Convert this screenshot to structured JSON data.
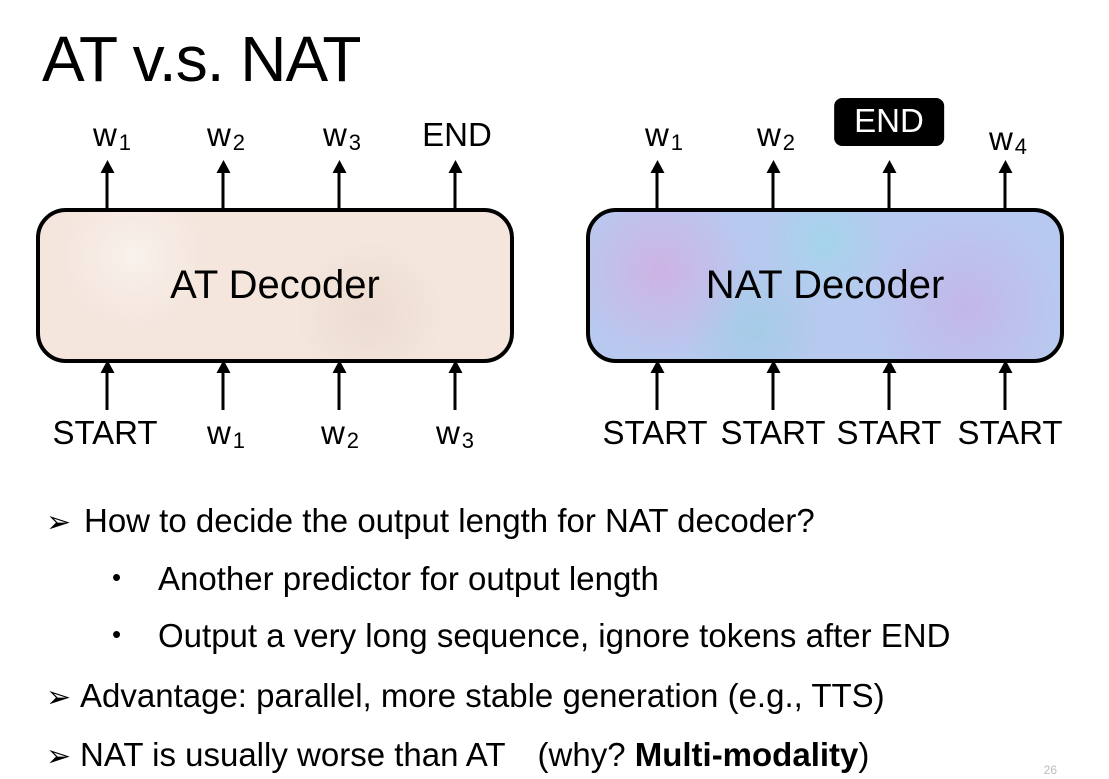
{
  "title": "AT v.s. NAT",
  "at": {
    "label": "AT Decoder",
    "outputs": [
      {
        "base": "w",
        "sub": "1"
      },
      {
        "base": "w",
        "sub": "2"
      },
      {
        "base": "w",
        "sub": "3"
      },
      {
        "base": "END",
        "sub": ""
      }
    ],
    "inputs": [
      {
        "base": "START",
        "sub": ""
      },
      {
        "base": "w",
        "sub": "1"
      },
      {
        "base": "w",
        "sub": "2"
      },
      {
        "base": "w",
        "sub": "3"
      }
    ]
  },
  "nat": {
    "label": "NAT Decoder",
    "outputs": [
      {
        "base": "w",
        "sub": "1"
      },
      {
        "base": "w",
        "sub": "2"
      },
      {
        "base": "END",
        "sub": "",
        "highlight": true
      },
      {
        "base": "w",
        "sub": "4"
      }
    ],
    "inputs": [
      {
        "base": "START",
        "sub": ""
      },
      {
        "base": "START",
        "sub": ""
      },
      {
        "base": "START",
        "sub": ""
      },
      {
        "base": "START",
        "sub": ""
      }
    ]
  },
  "bullets": {
    "mark": "➢",
    "dot": "•",
    "q": "How to decide the output length for NAT decoder?",
    "sub1": "Another predictor for output length",
    "sub2": "Output a very long sequence, ignore tokens after END",
    "adv": "Advantage: parallel, more stable generation (e.g., TTS)",
    "worse_pre": "NAT is usually worse than AT",
    "worse_paren_open": "(why? ",
    "worse_bold": "Multi-modality",
    "worse_paren_close": ")"
  },
  "page_number": "26"
}
